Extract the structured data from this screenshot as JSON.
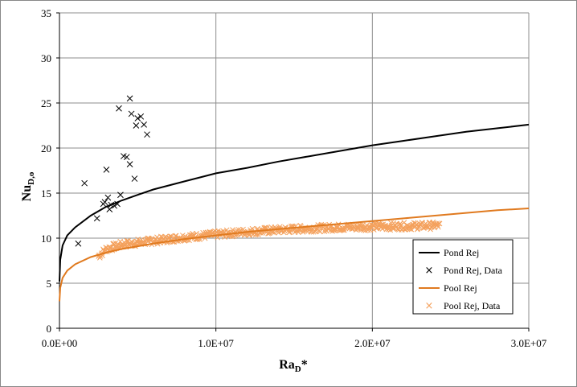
{
  "chart_data": {
    "type": "scatter",
    "xlabel_main": "Ra",
    "xlabel_sub": "D",
    "xlabel_suffix": "*",
    "ylabel_main": "Nu",
    "ylabel_sub": "D,o",
    "xlim": [
      0,
      30000000
    ],
    "ylim": [
      0,
      35
    ],
    "x_ticks": [
      0,
      10000000,
      20000000,
      30000000
    ],
    "x_tick_labels": [
      "0.0E+00",
      "1.0E+07",
      "2.0E+07",
      "3.0E+07"
    ],
    "y_ticks": [
      0,
      5,
      10,
      15,
      20,
      25,
      30,
      35
    ],
    "y_tick_labels": [
      "0",
      "5",
      "10",
      "15",
      "20",
      "25",
      "30",
      "35"
    ],
    "grid": true,
    "legend_position": "bottom-right",
    "series": [
      {
        "name": "Pond Rej",
        "kind": "line",
        "color": "#000000",
        "x": [
          0,
          50000,
          200000,
          500000,
          1000000,
          2000000,
          3000000,
          4000000,
          5000000,
          6000000,
          8000000,
          10000000,
          12000000,
          14000000,
          16000000,
          18000000,
          20000000,
          22000000,
          24000000,
          26000000,
          28000000,
          30000000
        ],
        "y": [
          5.2,
          7.6,
          9.2,
          10.3,
          11.2,
          12.5,
          13.5,
          14.2,
          14.8,
          15.4,
          16.3,
          17.2,
          17.8,
          18.5,
          19.1,
          19.7,
          20.3,
          20.8,
          21.3,
          21.8,
          22.2,
          22.6
        ]
      },
      {
        "name": "Pond Rej, Data",
        "kind": "marker",
        "color": "#000000",
        "x": [
          1200000,
          1600000,
          2400000,
          2800000,
          2900000,
          3000000,
          3100000,
          3200000,
          3300000,
          3500000,
          3700000,
          3800000,
          3900000,
          4100000,
          4300000,
          4500000,
          4500000,
          4600000,
          4800000,
          4900000,
          5000000,
          5200000,
          5400000,
          5600000
        ],
        "y": [
          9.4,
          16.1,
          12.2,
          13.8,
          14.0,
          17.6,
          14.5,
          13.2,
          13.7,
          13.6,
          13.8,
          24.4,
          14.8,
          19.1,
          19.0,
          25.5,
          18.2,
          23.8,
          16.6,
          22.5,
          23.3,
          23.5,
          22.6,
          21.5
        ]
      },
      {
        "name": "Pool Rej",
        "kind": "line",
        "color": "#e07a1f",
        "x": [
          0,
          50000,
          200000,
          500000,
          1000000,
          2000000,
          3000000,
          4000000,
          5000000,
          6000000,
          8000000,
          10000000,
          12000000,
          14000000,
          16000000,
          18000000,
          20000000,
          22000000,
          24000000,
          26000000,
          28000000,
          30000000
        ],
        "y": [
          3.0,
          4.5,
          5.6,
          6.4,
          7.1,
          7.9,
          8.4,
          8.8,
          9.1,
          9.4,
          9.9,
          10.3,
          10.7,
          11.0,
          11.3,
          11.6,
          11.9,
          12.2,
          12.5,
          12.8,
          13.1,
          13.3
        ]
      },
      {
        "name": "Pool Rej, Data",
        "kind": "marker",
        "color": "#f4a15d",
        "x_range": [
          2500000,
          24300000
        ],
        "trend": [
          [
            2500000,
            8.0
          ],
          [
            3000000,
            8.8
          ],
          [
            4000000,
            9.3
          ],
          [
            6000000,
            9.7
          ],
          [
            8000000,
            10.1
          ],
          [
            10000000,
            10.4
          ],
          [
            12000000,
            10.7
          ],
          [
            15000000,
            11.0
          ],
          [
            18000000,
            11.2
          ],
          [
            21000000,
            11.3
          ],
          [
            24300000,
            11.4
          ]
        ],
        "spread": 0.4
      }
    ]
  }
}
